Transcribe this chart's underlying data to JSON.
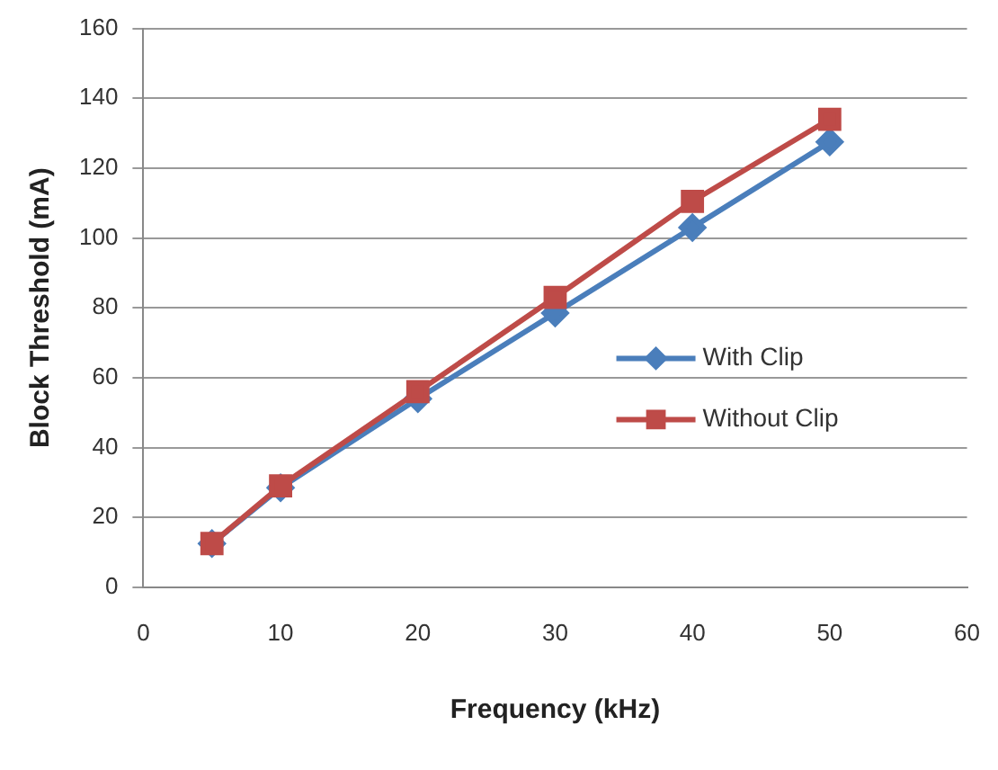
{
  "chart_data": {
    "type": "line",
    "xlabel": "Frequency (kHz)",
    "ylabel": "Block Threshold (mA)",
    "x": [
      5,
      10,
      20,
      30,
      40,
      50
    ],
    "series": [
      {
        "name": "With Clip",
        "color": "#4a7ebb",
        "values": [
          12.5,
          28.5,
          54,
          78.5,
          103,
          127.5
        ],
        "marker": "diamond"
      },
      {
        "name": "Without Clip",
        "color": "#be4b48",
        "values": [
          12.5,
          29,
          56,
          83,
          110.5,
          134
        ],
        "marker": "square"
      }
    ],
    "xlim": [
      0,
      60
    ],
    "xticks": [
      0,
      10,
      20,
      30,
      40,
      50,
      60
    ],
    "ylim": [
      0,
      160
    ],
    "yticks": [
      0,
      20,
      40,
      60,
      80,
      100,
      120,
      140,
      160
    ],
    "grid": "y",
    "legend": "right",
    "line_style": "solid"
  }
}
